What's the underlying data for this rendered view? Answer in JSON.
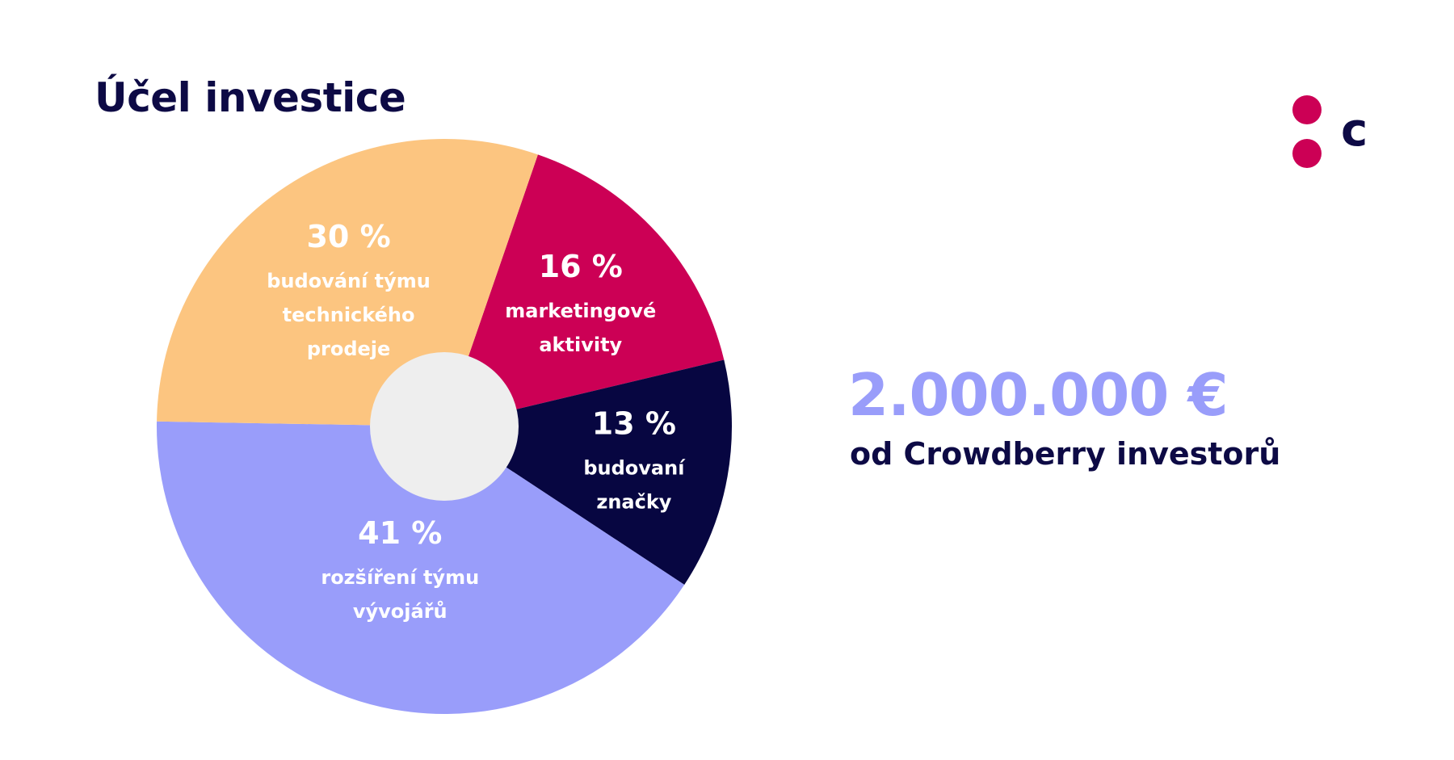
{
  "header": {
    "title": "Účel investice"
  },
  "summary": {
    "amount": "2.000.000 €",
    "caption": "od Crowdberry investorů"
  },
  "logo": {
    "icon": "crowdberry-logo-icon",
    "letter": "c",
    "dot_color": "#cc0055",
    "letter_color": "#0d0a45"
  },
  "chart_data": {
    "type": "pie",
    "title": "Účel investice",
    "hole_color": "#eeeeee",
    "slices": [
      {
        "value": 16,
        "pct_label": "16 %",
        "label_lines": [
          "marketingové",
          "aktivity"
        ],
        "color": "#cc0055"
      },
      {
        "value": 13,
        "pct_label": "13 %",
        "label_lines": [
          "budovaní",
          "značky"
        ],
        "color": "#070641"
      },
      {
        "value": 41,
        "pct_label": "41 %",
        "label_lines": [
          "rozšíření týmu",
          "vývojářů"
        ],
        "color": "#999dfa"
      },
      {
        "value": 30,
        "pct_label": "30 %",
        "label_lines": [
          "budování týmu",
          "technického",
          "prodeje"
        ],
        "color": "#fcc580"
      }
    ]
  }
}
